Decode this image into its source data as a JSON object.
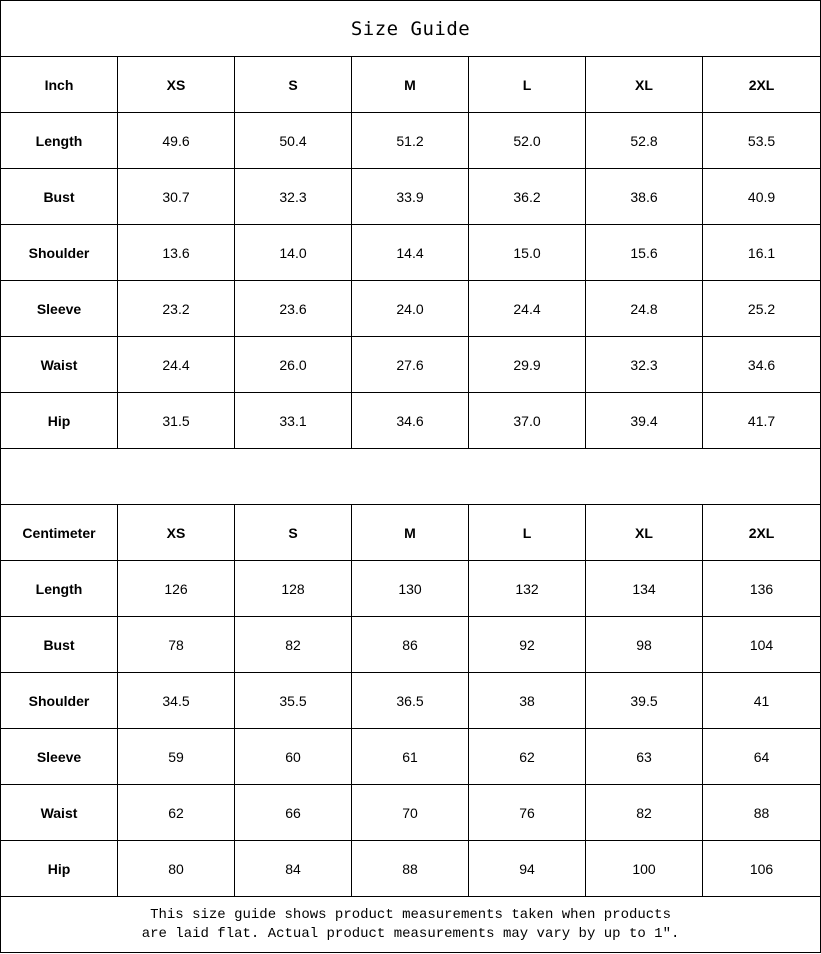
{
  "title": "Size Guide",
  "inch": {
    "header": [
      "Inch",
      "XS",
      "S",
      "M",
      "L",
      "XL",
      "2XL"
    ],
    "rows": [
      [
        "Length",
        "49.6",
        "50.4",
        "51.2",
        "52.0",
        "52.8",
        "53.5"
      ],
      [
        "Bust",
        "30.7",
        "32.3",
        "33.9",
        "36.2",
        "38.6",
        "40.9"
      ],
      [
        "Shoulder",
        "13.6",
        "14.0",
        "14.4",
        "15.0",
        "15.6",
        "16.1"
      ],
      [
        "Sleeve",
        "23.2",
        "23.6",
        "24.0",
        "24.4",
        "24.8",
        "25.2"
      ],
      [
        "Waist",
        "24.4",
        "26.0",
        "27.6",
        "29.9",
        "32.3",
        "34.6"
      ],
      [
        "Hip",
        "31.5",
        "33.1",
        "34.6",
        "37.0",
        "39.4",
        "41.7"
      ]
    ]
  },
  "centimeter": {
    "header": [
      "Centimeter",
      "XS",
      "S",
      "M",
      "L",
      "XL",
      "2XL"
    ],
    "rows": [
      [
        "Length",
        "126",
        "128",
        "130",
        "132",
        "134",
        "136"
      ],
      [
        "Bust",
        "78",
        "82",
        "86",
        "92",
        "98",
        "104"
      ],
      [
        "Shoulder",
        "34.5",
        "35.5",
        "36.5",
        "38",
        "39.5",
        "41"
      ],
      [
        "Sleeve",
        "59",
        "60",
        "61",
        "62",
        "63",
        "64"
      ],
      [
        "Waist",
        "62",
        "66",
        "70",
        "76",
        "82",
        "88"
      ],
      [
        "Hip",
        "80",
        "84",
        "88",
        "94",
        "100",
        "106"
      ]
    ]
  },
  "note": {
    "line1": "This size guide shows product measurements taken when products",
    "line2": "are laid flat. Actual product measurements may vary by up to 1″."
  }
}
